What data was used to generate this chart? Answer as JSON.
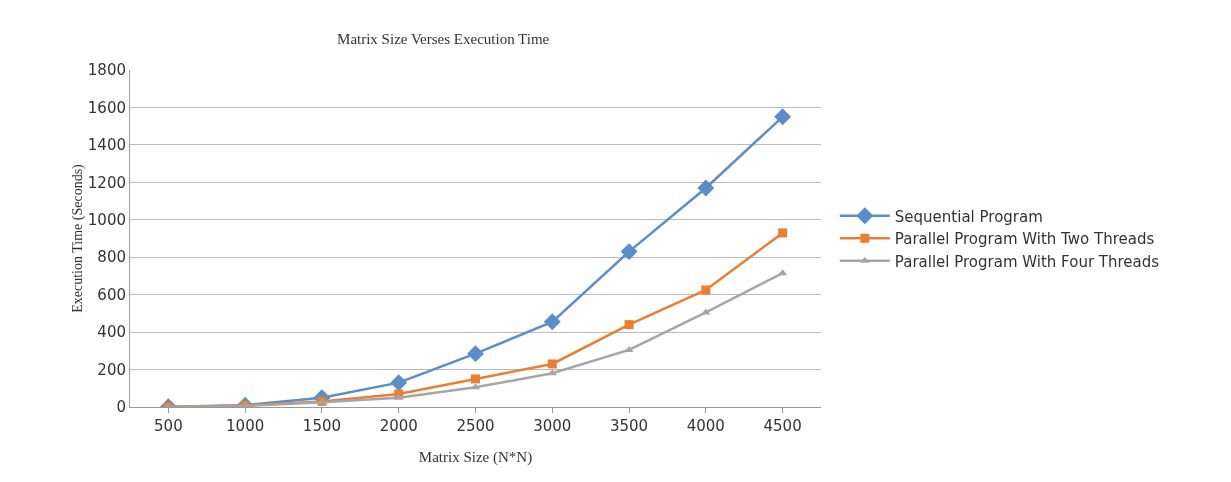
{
  "chart_data": {
    "type": "line",
    "title": "Matrix Size Verses Execution Time",
    "xlabel": "Matrix Size (N*N)",
    "ylabel": "Execution Time (Seconds)",
    "categories": [
      "500",
      "1000",
      "1500",
      "2000",
      "2500",
      "3000",
      "3500",
      "4000",
      "4500"
    ],
    "series": [
      {
        "name": "Sequential Program",
        "color": "#5b8ec9",
        "marker": "diamond",
        "values": [
          2,
          10,
          50,
          130,
          285,
          455,
          830,
          1170,
          1550
        ]
      },
      {
        "name": "Parallel Program With Two Threads",
        "color": "#ed7d31",
        "marker": "square",
        "values": [
          0,
          8,
          30,
          70,
          150,
          230,
          440,
          625,
          930
        ]
      },
      {
        "name": "Parallel Program With Four Threads",
        "color": "#a5a5a5",
        "marker": "triangle",
        "values": [
          0,
          6,
          25,
          50,
          105,
          180,
          305,
          505,
          715
        ]
      }
    ],
    "ylim": [
      0,
      1800
    ],
    "yticks": [
      0,
      200,
      400,
      600,
      800,
      1000,
      1200,
      1400,
      1600,
      1800
    ],
    "grid": "y",
    "legend": "right",
    "line_style": "solid"
  }
}
